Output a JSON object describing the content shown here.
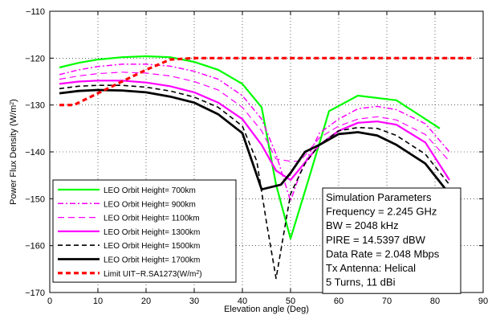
{
  "chart_data": {
    "type": "line",
    "xlabel": "Elevation angle (Deg)",
    "ylabel": "Power Flux Density (W/m",
    "ylabel_sup": "2",
    "ylabel_close": ")",
    "xlim": [
      0,
      90
    ],
    "ylim": [
      -170,
      -110
    ],
    "xticks": [
      0,
      10,
      20,
      30,
      40,
      50,
      60,
      70,
      80,
      90
    ],
    "yticks": [
      -170,
      -160,
      -150,
      -140,
      -130,
      -120,
      -110
    ],
    "xtick_labels": [
      "0",
      "10",
      "20",
      "30",
      "40",
      "50",
      "60",
      "70",
      "80",
      "90"
    ],
    "ytick_labels": [
      "−170",
      "−160",
      "−150",
      "−140",
      "−130",
      "−120",
      "−110"
    ],
    "grid": true,
    "legend_position": "lower-left",
    "series": [
      {
        "name": "LEO Orbit Height= 700km",
        "color": "#00ff00",
        "dash": "solid",
        "width": 2.2,
        "x": [
          2,
          6,
          10,
          15,
          20,
          25,
          30,
          35,
          40,
          44,
          47,
          50,
          54,
          58,
          64,
          72,
          81
        ],
        "y": [
          -122,
          -121,
          -120.3,
          -119.8,
          -119.6,
          -119.8,
          -120.8,
          -122.5,
          -125.5,
          -130.5,
          -147,
          -158.5,
          -145,
          -131.3,
          -128,
          -129,
          -135
        ]
      },
      {
        "name": "LEO Orbit Height= 900km",
        "color": "#ff00ff",
        "dash": "7 3 2 3",
        "width": 1.5,
        "x": [
          2,
          6,
          10,
          15,
          20,
          25,
          30,
          35,
          40,
          44,
          47,
          50,
          52,
          56,
          60,
          64,
          68,
          72,
          78,
          83
        ],
        "y": [
          -123.5,
          -122.5,
          -121.8,
          -121.3,
          -121.3,
          -121.7,
          -122.8,
          -124.5,
          -128,
          -133,
          -140.5,
          -150.5,
          -144.5,
          -136,
          -133,
          -130.8,
          -130.3,
          -131,
          -134,
          -140
        ]
      },
      {
        "name": "LEO Orbit Height= 1100km",
        "color": "#ff00ff",
        "dash": "8 5",
        "width": 1.2,
        "x": [
          2,
          6,
          10,
          15,
          20,
          25,
          30,
          35,
          40,
          44,
          47,
          50,
          52,
          56,
          60,
          64,
          68,
          72,
          78,
          83
        ],
        "y": [
          -124.5,
          -123.8,
          -123.3,
          -123,
          -123.2,
          -123.8,
          -125,
          -126.8,
          -130.5,
          -135.5,
          -141.5,
          -142,
          -142,
          -137,
          -134.5,
          -133,
          -132.5,
          -133.2,
          -136.3,
          -142
        ]
      },
      {
        "name": "LEO Orbit Height= 1300km",
        "color": "#ff00ff",
        "dash": "solid",
        "width": 2.2,
        "x": [
          2,
          6,
          10,
          15,
          20,
          25,
          30,
          35,
          40,
          44,
          47,
          50,
          52,
          56,
          60,
          64,
          68,
          72,
          78,
          83
        ],
        "y": [
          -125.5,
          -125,
          -124.8,
          -124.8,
          -125.2,
          -126,
          -127.3,
          -129.5,
          -133,
          -138.5,
          -144,
          -146,
          -143.5,
          -138.5,
          -135.5,
          -133.8,
          -133.5,
          -134.2,
          -138,
          -146
        ]
      },
      {
        "name": "LEO Orbit Height= 1500km",
        "color": "#000000",
        "dash": "6 4",
        "width": 1.6,
        "x": [
          2,
          6,
          10,
          15,
          20,
          25,
          30,
          35,
          40,
          43,
          45,
          47,
          50,
          53,
          56,
          60,
          64,
          68,
          72,
          78,
          83
        ],
        "y": [
          -126.5,
          -126,
          -125.8,
          -125.8,
          -126.2,
          -127,
          -128.3,
          -130.5,
          -134.5,
          -142,
          -155,
          -167,
          -149,
          -142.5,
          -138.5,
          -135.5,
          -134.8,
          -135,
          -136.5,
          -140.5,
          -147
        ]
      },
      {
        "name": "LEO Orbit Height= 1700km",
        "color": "#000000",
        "dash": "solid",
        "width": 2.8,
        "x": [
          2,
          6,
          10,
          15,
          20,
          25,
          30,
          35,
          40,
          44,
          48,
          50,
          53,
          56,
          60,
          64,
          68,
          72,
          78,
          83
        ],
        "y": [
          -127.5,
          -127,
          -126.8,
          -126.9,
          -127.3,
          -128.2,
          -129.5,
          -132,
          -136,
          -148,
          -147,
          -144.5,
          -140,
          -138.5,
          -136.2,
          -135.8,
          -136.5,
          -138.5,
          -142.5,
          -149
        ]
      },
      {
        "name": "Limit UIT−R.SA1273(W/m",
        "name_sup": "2",
        "name_close": ")",
        "color": "#ff0000",
        "dash": "6 4",
        "width": 3.2,
        "x": [
          2,
          5,
          10,
          15,
          20,
          25,
          30,
          40,
          50,
          60,
          70,
          80,
          88
        ],
        "y": [
          -130,
          -130,
          -127.5,
          -125,
          -122.5,
          -120.3,
          -120,
          -120,
          -120,
          -120,
          -120,
          -120,
          -120
        ]
      }
    ],
    "annotations": [
      "Simulation Parameters",
      "Frequency = 2.245 GHz",
      "BW = 2048 kHz",
      "PIRE = 14.5397 dBW",
      "Data Rate = 2.048 Mbps",
      "Tx Antenna: Helical",
      "5 Turns, 11 dBi"
    ]
  }
}
